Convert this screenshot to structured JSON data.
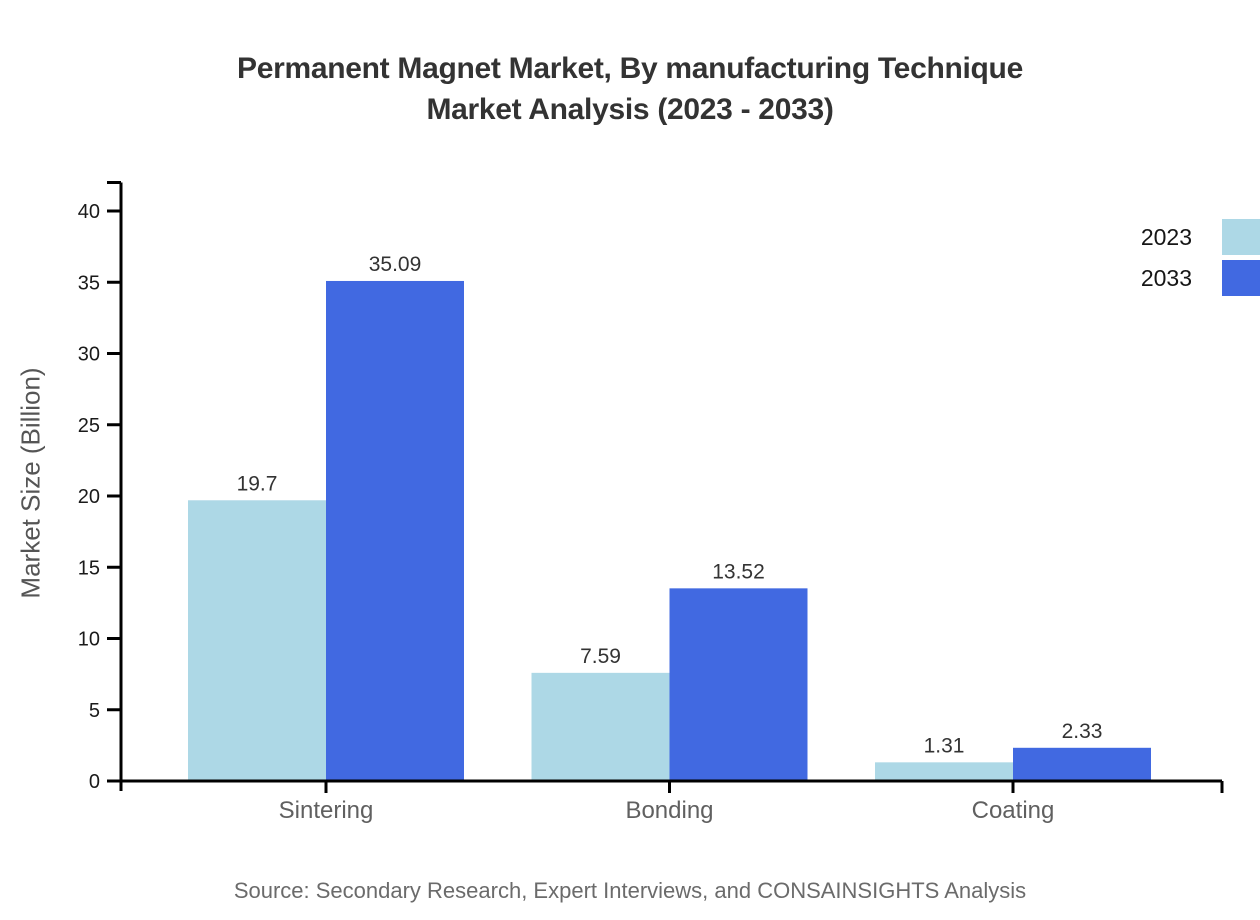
{
  "title": {
    "line1": "Permanent Magnet Market, By manufacturing Technique",
    "line2": "Market Analysis (2023 - 2033)"
  },
  "y_axis": {
    "label": "Market Size (Billion)"
  },
  "legend": {
    "items": [
      {
        "label": "2023",
        "color": "#ADD8E6"
      },
      {
        "label": "2033",
        "color": "#4169E1"
      }
    ]
  },
  "source_note": "Source: Secondary Research, Expert Interviews, and CONSAINSIGHTS Analysis",
  "chart_data": {
    "type": "bar",
    "title": "Permanent Magnet Market, By manufacturing Technique Market Analysis (2023 - 2033)",
    "categories": [
      "Sintering",
      "Bonding",
      "Coating"
    ],
    "series": [
      {
        "name": "2023",
        "color": "#ADD8E6",
        "values": [
          19.7,
          7.59,
          1.31
        ]
      },
      {
        "name": "2033",
        "color": "#4169E1",
        "values": [
          35.09,
          13.52,
          2.33
        ]
      }
    ],
    "value_labels": [
      "19.7",
      "35.09",
      "7.59",
      "13.52",
      "1.31",
      "2.33"
    ],
    "xlabel": "",
    "ylabel": "Market Size (Billion)",
    "yticks": [
      0,
      5,
      10,
      15,
      20,
      25,
      30,
      35,
      40
    ],
    "ylim": [
      0,
      42
    ],
    "grid": false,
    "legend_position": "top-right",
    "axis_color": "#000000",
    "value_label_color": "#333333"
  }
}
